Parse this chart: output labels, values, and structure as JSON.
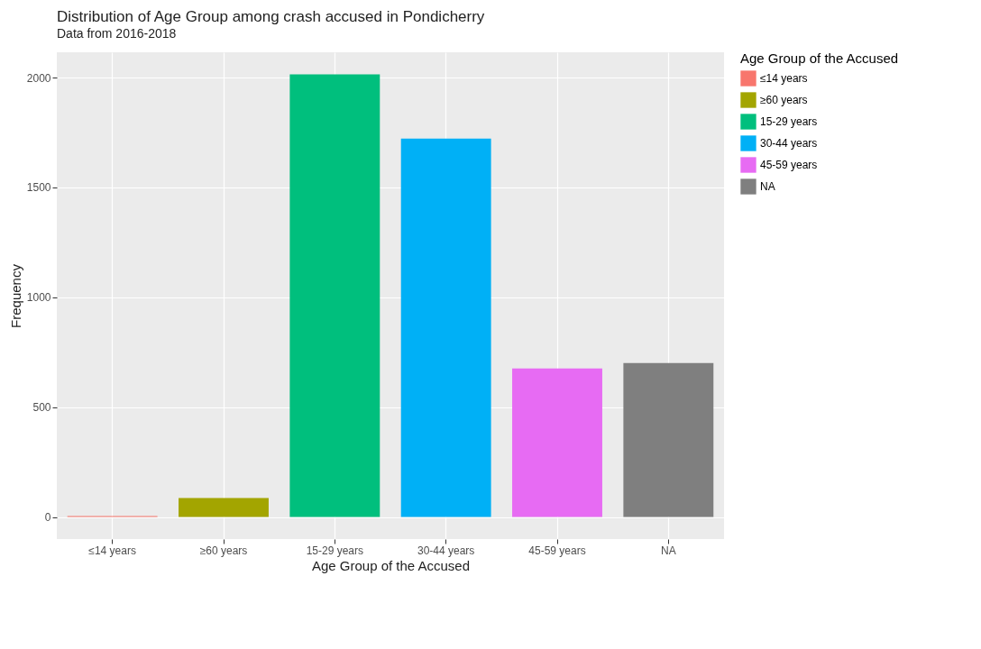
{
  "chart_data": {
    "type": "bar",
    "title": "Distribution of Age Group among crash accused in Pondicherry",
    "subtitle": "Data from 2016-2018",
    "xlabel": "Age Group of the Accused",
    "ylabel": "Frequency",
    "legend_title": "Age Group of the Accused",
    "categories": [
      "≤14 years",
      "≥60 years",
      "15-29 years",
      "30-44 years",
      "45-59 years",
      "NA"
    ],
    "series": [
      {
        "name": "≤14 years",
        "color": "#f8766d",
        "values": [
          5,
          null,
          null,
          null,
          null,
          null
        ]
      },
      {
        "name": "≥60 years",
        "color": "#a3a500",
        "values": [
          null,
          87,
          null,
          null,
          null,
          null
        ]
      },
      {
        "name": "15-29 years",
        "color": "#00bf7d",
        "values": [
          null,
          null,
          2015,
          null,
          null,
          null
        ]
      },
      {
        "name": "30-44 years",
        "color": "#00b0f6",
        "values": [
          null,
          null,
          null,
          1722,
          null,
          null
        ]
      },
      {
        "name": "45-59 years",
        "color": "#e76bf3",
        "values": [
          null,
          null,
          null,
          null,
          676,
          null
        ]
      },
      {
        "name": "NA",
        "color": "#7f7f7f",
        "values": [
          null,
          null,
          null,
          null,
          null,
          701
        ]
      }
    ],
    "ylim": [
      -100,
      2115
    ],
    "yticks": [
      0,
      500,
      1000,
      1500,
      2000
    ],
    "grid": true,
    "legend": "right"
  }
}
